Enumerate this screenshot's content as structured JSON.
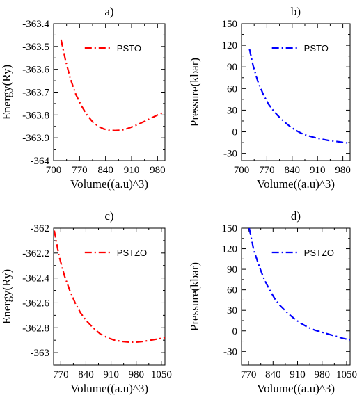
{
  "chart_data": [
    {
      "type": "line",
      "panel_label": "a)",
      "xlabel": "Volume((a.u)^3)",
      "ylabel": "Energy(Ry)",
      "xlim": [
        700,
        1000
      ],
      "ylim": [
        -364,
        -363.4
      ],
      "xticks": [
        700,
        770,
        840,
        910,
        980
      ],
      "yticks": [
        -363.4,
        -363.5,
        -363.6,
        -363.7,
        -363.8,
        -363.9,
        -364
      ],
      "ytick_labels": [
        "-363.4",
        "-363.5",
        "-363.6",
        "-363.7",
        "-363.8",
        "-363.9",
        "-364"
      ],
      "legend_position": "top-right",
      "series": [
        {
          "name": "PSTO",
          "color": "#ff0000",
          "x": [
            720,
            732,
            745,
            760,
            775,
            790,
            805,
            820,
            835,
            850,
            865,
            880,
            895,
            910,
            925,
            940,
            955,
            970,
            985,
            995
          ],
          "y": [
            -363.47,
            -363.56,
            -363.64,
            -363.71,
            -363.76,
            -363.8,
            -363.83,
            -363.849,
            -363.861,
            -363.867,
            -363.868,
            -363.867,
            -363.862,
            -363.853,
            -363.843,
            -363.832,
            -363.82,
            -363.808,
            -363.796,
            -363.79
          ]
        }
      ]
    },
    {
      "type": "line",
      "panel_label": "b)",
      "xlabel": "Volume((a.u)^3)",
      "ylabel": "Pressure(kbar)",
      "xlim": [
        700,
        1000
      ],
      "ylim": [
        -40,
        150
      ],
      "xticks": [
        700,
        770,
        840,
        910,
        980
      ],
      "yticks": [
        150,
        120,
        90,
        60,
        30,
        0,
        -30
      ],
      "ytick_labels": [
        "150",
        "120",
        "90",
        "60",
        "30",
        "0",
        "-30"
      ],
      "legend_position": "top-right",
      "series": [
        {
          "name": "PSTO",
          "color": "#0000ff",
          "x": [
            722,
            732,
            745,
            760,
            775,
            790,
            805,
            820,
            835,
            850,
            865,
            880,
            895,
            910,
            925,
            940,
            955,
            970,
            985,
            1000
          ],
          "y": [
            115,
            92,
            70,
            52,
            38,
            28,
            20,
            13,
            7,
            2,
            -2,
            -5,
            -7,
            -9,
            -10.5,
            -12,
            -13,
            -14,
            -15,
            -16
          ]
        }
      ]
    },
    {
      "type": "line",
      "panel_label": "c)",
      "xlabel": "Volume((a.u)^3)",
      "ylabel": "Energy(Ry)",
      "xlim": [
        750,
        1060
      ],
      "ylim": [
        -363.1,
        -362
      ],
      "xticks": [
        770,
        840,
        910,
        980,
        1050
      ],
      "yticks": [
        -362,
        -362.2,
        -362.4,
        -362.6,
        -362.8,
        -363
      ],
      "ytick_labels": [
        "-362",
        "-362.2",
        "-362.4",
        "-362.6",
        "-362.8",
        "-363"
      ],
      "legend_position": "top-right",
      "series": [
        {
          "name": "PSTZO",
          "color": "#ff0000",
          "x": [
            752,
            765,
            780,
            795,
            810,
            825,
            840,
            860,
            880,
            900,
            920,
            940,
            960,
            980,
            1000,
            1020,
            1040,
            1060
          ],
          "y": [
            -362.02,
            -362.22,
            -362.38,
            -362.5,
            -362.6,
            -362.68,
            -362.74,
            -362.8,
            -362.85,
            -362.88,
            -362.9,
            -362.91,
            -362.915,
            -362.915,
            -362.91,
            -362.9,
            -362.89,
            -362.88
          ]
        }
      ]
    },
    {
      "type": "line",
      "panel_label": "d)",
      "xlabel": "Volume((a.u)^3)",
      "ylabel": "Pressure(kbar)",
      "xlim": [
        750,
        1060
      ],
      "ylim": [
        -50,
        150
      ],
      "xticks": [
        770,
        840,
        910,
        980,
        1050
      ],
      "yticks": [
        150,
        120,
        90,
        60,
        30,
        0,
        -30
      ],
      "ytick_labels": [
        "150",
        "120",
        "90",
        "60",
        "30",
        "0",
        "-30"
      ],
      "legend_position": "top-right",
      "series": [
        {
          "name": "PSTZO",
          "color": "#0000ff",
          "x": [
            772,
            785,
            800,
            815,
            830,
            845,
            860,
            880,
            900,
            920,
            940,
            960,
            980,
            1000,
            1020,
            1040,
            1060
          ],
          "y": [
            150,
            118,
            95,
            75,
            60,
            47,
            37,
            27,
            18,
            11,
            5,
            1,
            -2,
            -5,
            -8,
            -11,
            -13
          ]
        }
      ]
    }
  ]
}
